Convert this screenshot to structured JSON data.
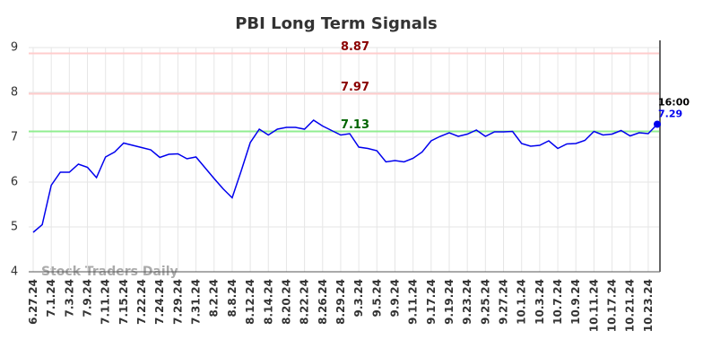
{
  "chart_data": {
    "type": "line",
    "title": "PBI Long Term Signals",
    "watermark": "Stock Traders Daily",
    "categories": [
      "6.27.24",
      null,
      "7.1.24",
      null,
      "7.3.24",
      null,
      "7.9.24",
      null,
      "7.11.24",
      null,
      "7.15.24",
      null,
      "7.22.24",
      null,
      "7.24.24",
      null,
      "7.29.24",
      null,
      "7.31.24",
      null,
      "8.2.24",
      null,
      "8.8.24",
      null,
      "8.12.24",
      null,
      "8.14.24",
      null,
      "8.20.24",
      null,
      "8.22.24",
      null,
      "8.26.24",
      null,
      "8.29.24",
      null,
      "9.3.24",
      null,
      "9.5.24",
      null,
      "9.9.24",
      null,
      "9.11.24",
      null,
      "9.17.24",
      null,
      "9.19.24",
      null,
      "9.23.24",
      null,
      "9.25.24",
      null,
      "9.27.24",
      null,
      "10.1.24",
      null,
      "10.3.24",
      null,
      "10.7.24",
      null,
      "10.9.24",
      null,
      "10.11.24",
      null,
      "10.17.24",
      null,
      "10.21.24",
      null,
      "10.23.24",
      null
    ],
    "series": [
      {
        "color": "#0000ee",
        "values": [
          4.88,
          5.05,
          5.93,
          6.22,
          6.22,
          6.4,
          6.33,
          6.1,
          6.56,
          6.67,
          6.87,
          6.82,
          6.77,
          6.72,
          6.55,
          6.62,
          6.63,
          6.52,
          6.56,
          6.32,
          6.08,
          5.85,
          5.65,
          6.25,
          6.88,
          7.18,
          7.05,
          7.18,
          7.22,
          7.22,
          7.18,
          7.38,
          7.25,
          7.15,
          7.05,
          7.08,
          6.78,
          6.75,
          6.7,
          6.45,
          6.48,
          6.45,
          6.53,
          6.67,
          6.92,
          7.02,
          7.1,
          7.02,
          7.07,
          7.16,
          7.02,
          7.12,
          7.12,
          7.13,
          6.86,
          6.8,
          6.82,
          6.92,
          6.75,
          6.85,
          6.86,
          6.93,
          7.13,
          7.05,
          7.07,
          7.15,
          7.03,
          7.1,
          7.08,
          7.29
        ]
      }
    ],
    "hlines": [
      {
        "value": 8.87,
        "color": "#ffcccc",
        "label_color": "#8b0000"
      },
      {
        "value": 7.97,
        "color": "#ffcccc",
        "label_color": "#8b0000"
      },
      {
        "value": 7.13,
        "color": "#90ee90",
        "label_color": "#006400"
      }
    ],
    "last_time": "16:00",
    "ylim": [
      4,
      9
    ],
    "yticks": [
      4,
      5,
      6,
      7,
      8,
      9
    ],
    "grid": true
  }
}
